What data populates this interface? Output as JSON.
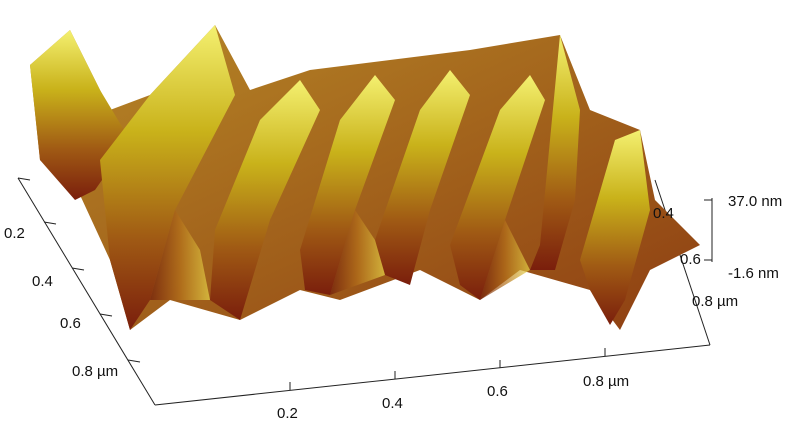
{
  "axes": {
    "left_ticks": [
      "0.2",
      "0.4",
      "0.6",
      "0.8 µm"
    ],
    "bottom_ticks": [
      "0.2",
      "0.4",
      "0.6",
      "0.8 µm"
    ],
    "right_ticks": [
      "0.4",
      "0.6",
      "0.8 µm"
    ],
    "z_ticks": [
      "37.0 nm",
      "-1.6 nm"
    ]
  }
}
